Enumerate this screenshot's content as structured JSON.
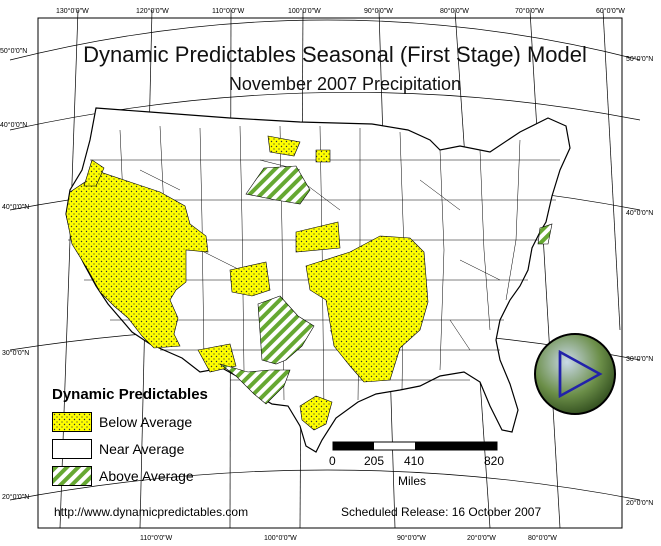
{
  "title": "Dynamic Predictables Seasonal (First Stage) Model",
  "subtitle": "November 2007 Precipitation",
  "top_longitudes": [
    "130°0'0\"W",
    "120°0'0\"W",
    "110°0'0\"W",
    "100°0'0\"W",
    "90°0'0\"W",
    "80°0'0\"W",
    "70°0'0\"W",
    "60°0'0\"W"
  ],
  "bottom_longitudes": [
    "110°0'0\"W",
    "100°0'0\"W",
    "90°0'0\"W",
    "80°0'0\"W"
  ],
  "bottom_longitudes_extra": [
    "20°0'0\"W"
  ],
  "left_latitudes": [
    "50°0'0\"N",
    "40°0'0\"N",
    "40°0'0\"N",
    "30°0'0\"N",
    "20°0'0\"N"
  ],
  "right_latitudes": [
    "50°0'0\"N",
    "40°0'0\"N",
    "30°0'0\"N",
    "20°0'0\"N"
  ],
  "legend": {
    "title": "Dynamic Predictables",
    "items": [
      {
        "label": "Below Average",
        "fill": "#ffff00",
        "pattern": "dots"
      },
      {
        "label": "Near Average",
        "fill": "#ffffff",
        "pattern": "none"
      },
      {
        "label": "Above Average",
        "fill": "#66a832",
        "pattern": "stripes"
      }
    ]
  },
  "scale_bar": {
    "ticks": [
      "0",
      "205",
      "410",
      "820"
    ],
    "unit": "Miles"
  },
  "url": "http://www.dynamicpredictables.com",
  "release": "Scheduled Release: 16 October 2007",
  "colors": {
    "below_average": "#ffff00",
    "above_average": "#66a832",
    "logo_circle": "#6b8e48",
    "logo_arrow": "#2222aa"
  }
}
